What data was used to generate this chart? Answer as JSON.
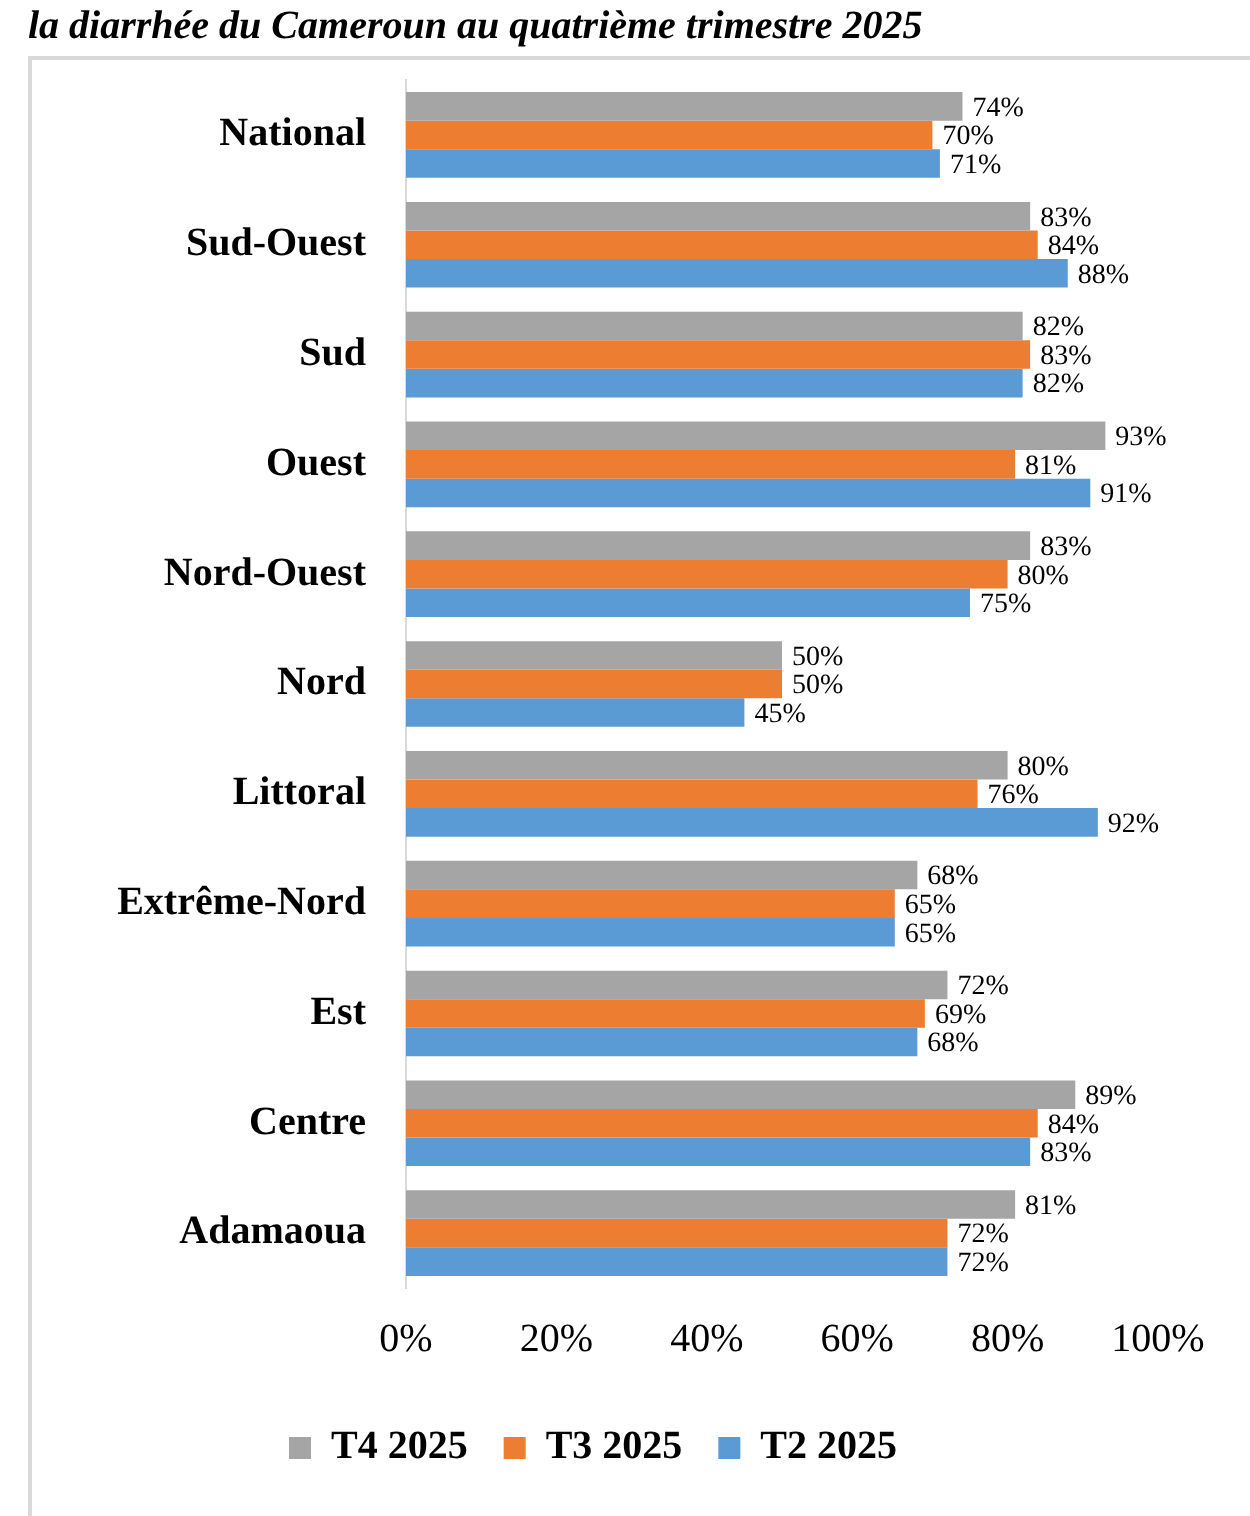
{
  "chart_data": {
    "type": "bar",
    "orientation": "horizontal",
    "title": "la diarrhée du Cameroun au quatrième trimestre 2025",
    "categories": [
      "National",
      "Sud-Ouest",
      "Sud",
      "Ouest",
      "Nord-Ouest",
      "Nord",
      "Littoral",
      "Extrême-Nord",
      "Est",
      "Centre",
      "Adamaoua"
    ],
    "series": [
      {
        "name": "T4 2025",
        "color": "#a5a5a5",
        "values": [
          74,
          83,
          82,
          93,
          83,
          50,
          80,
          68,
          72,
          89,
          81
        ],
        "value_labels": [
          "74%",
          "83%",
          "82%",
          "93%",
          "83%",
          "50%",
          "80%",
          "68%",
          "72%",
          "89%",
          "81%"
        ]
      },
      {
        "name": "T3 2025",
        "color": "#ed7d31",
        "values": [
          70,
          84,
          83,
          81,
          80,
          50,
          76,
          65,
          69,
          84,
          72
        ],
        "value_labels": [
          "70%",
          "84%",
          "83%",
          "81%",
          "80%",
          "50%",
          "76%",
          "65%",
          "69%",
          "84%",
          "72%"
        ]
      },
      {
        "name": "T2 2025",
        "color": "#5b9bd5",
        "values": [
          71,
          88,
          82,
          91,
          75,
          45,
          92,
          65,
          68,
          83,
          72
        ],
        "value_labels": [
          "71%",
          "88%",
          "82%",
          "91%",
          "75%",
          "45%",
          "92%",
          "65%",
          "68%",
          "83%",
          "72%"
        ]
      }
    ],
    "xlim": [
      0,
      100
    ],
    "xticks": [
      {
        "value": 0,
        "label": "0%"
      },
      {
        "value": 20,
        "label": "20%"
      },
      {
        "value": 40,
        "label": "40%"
      },
      {
        "value": 60,
        "label": "60%"
      },
      {
        "value": 80,
        "label": "80%"
      },
      {
        "value": 100,
        "label": "100%"
      }
    ],
    "grid": false,
    "legend": "bottom"
  }
}
